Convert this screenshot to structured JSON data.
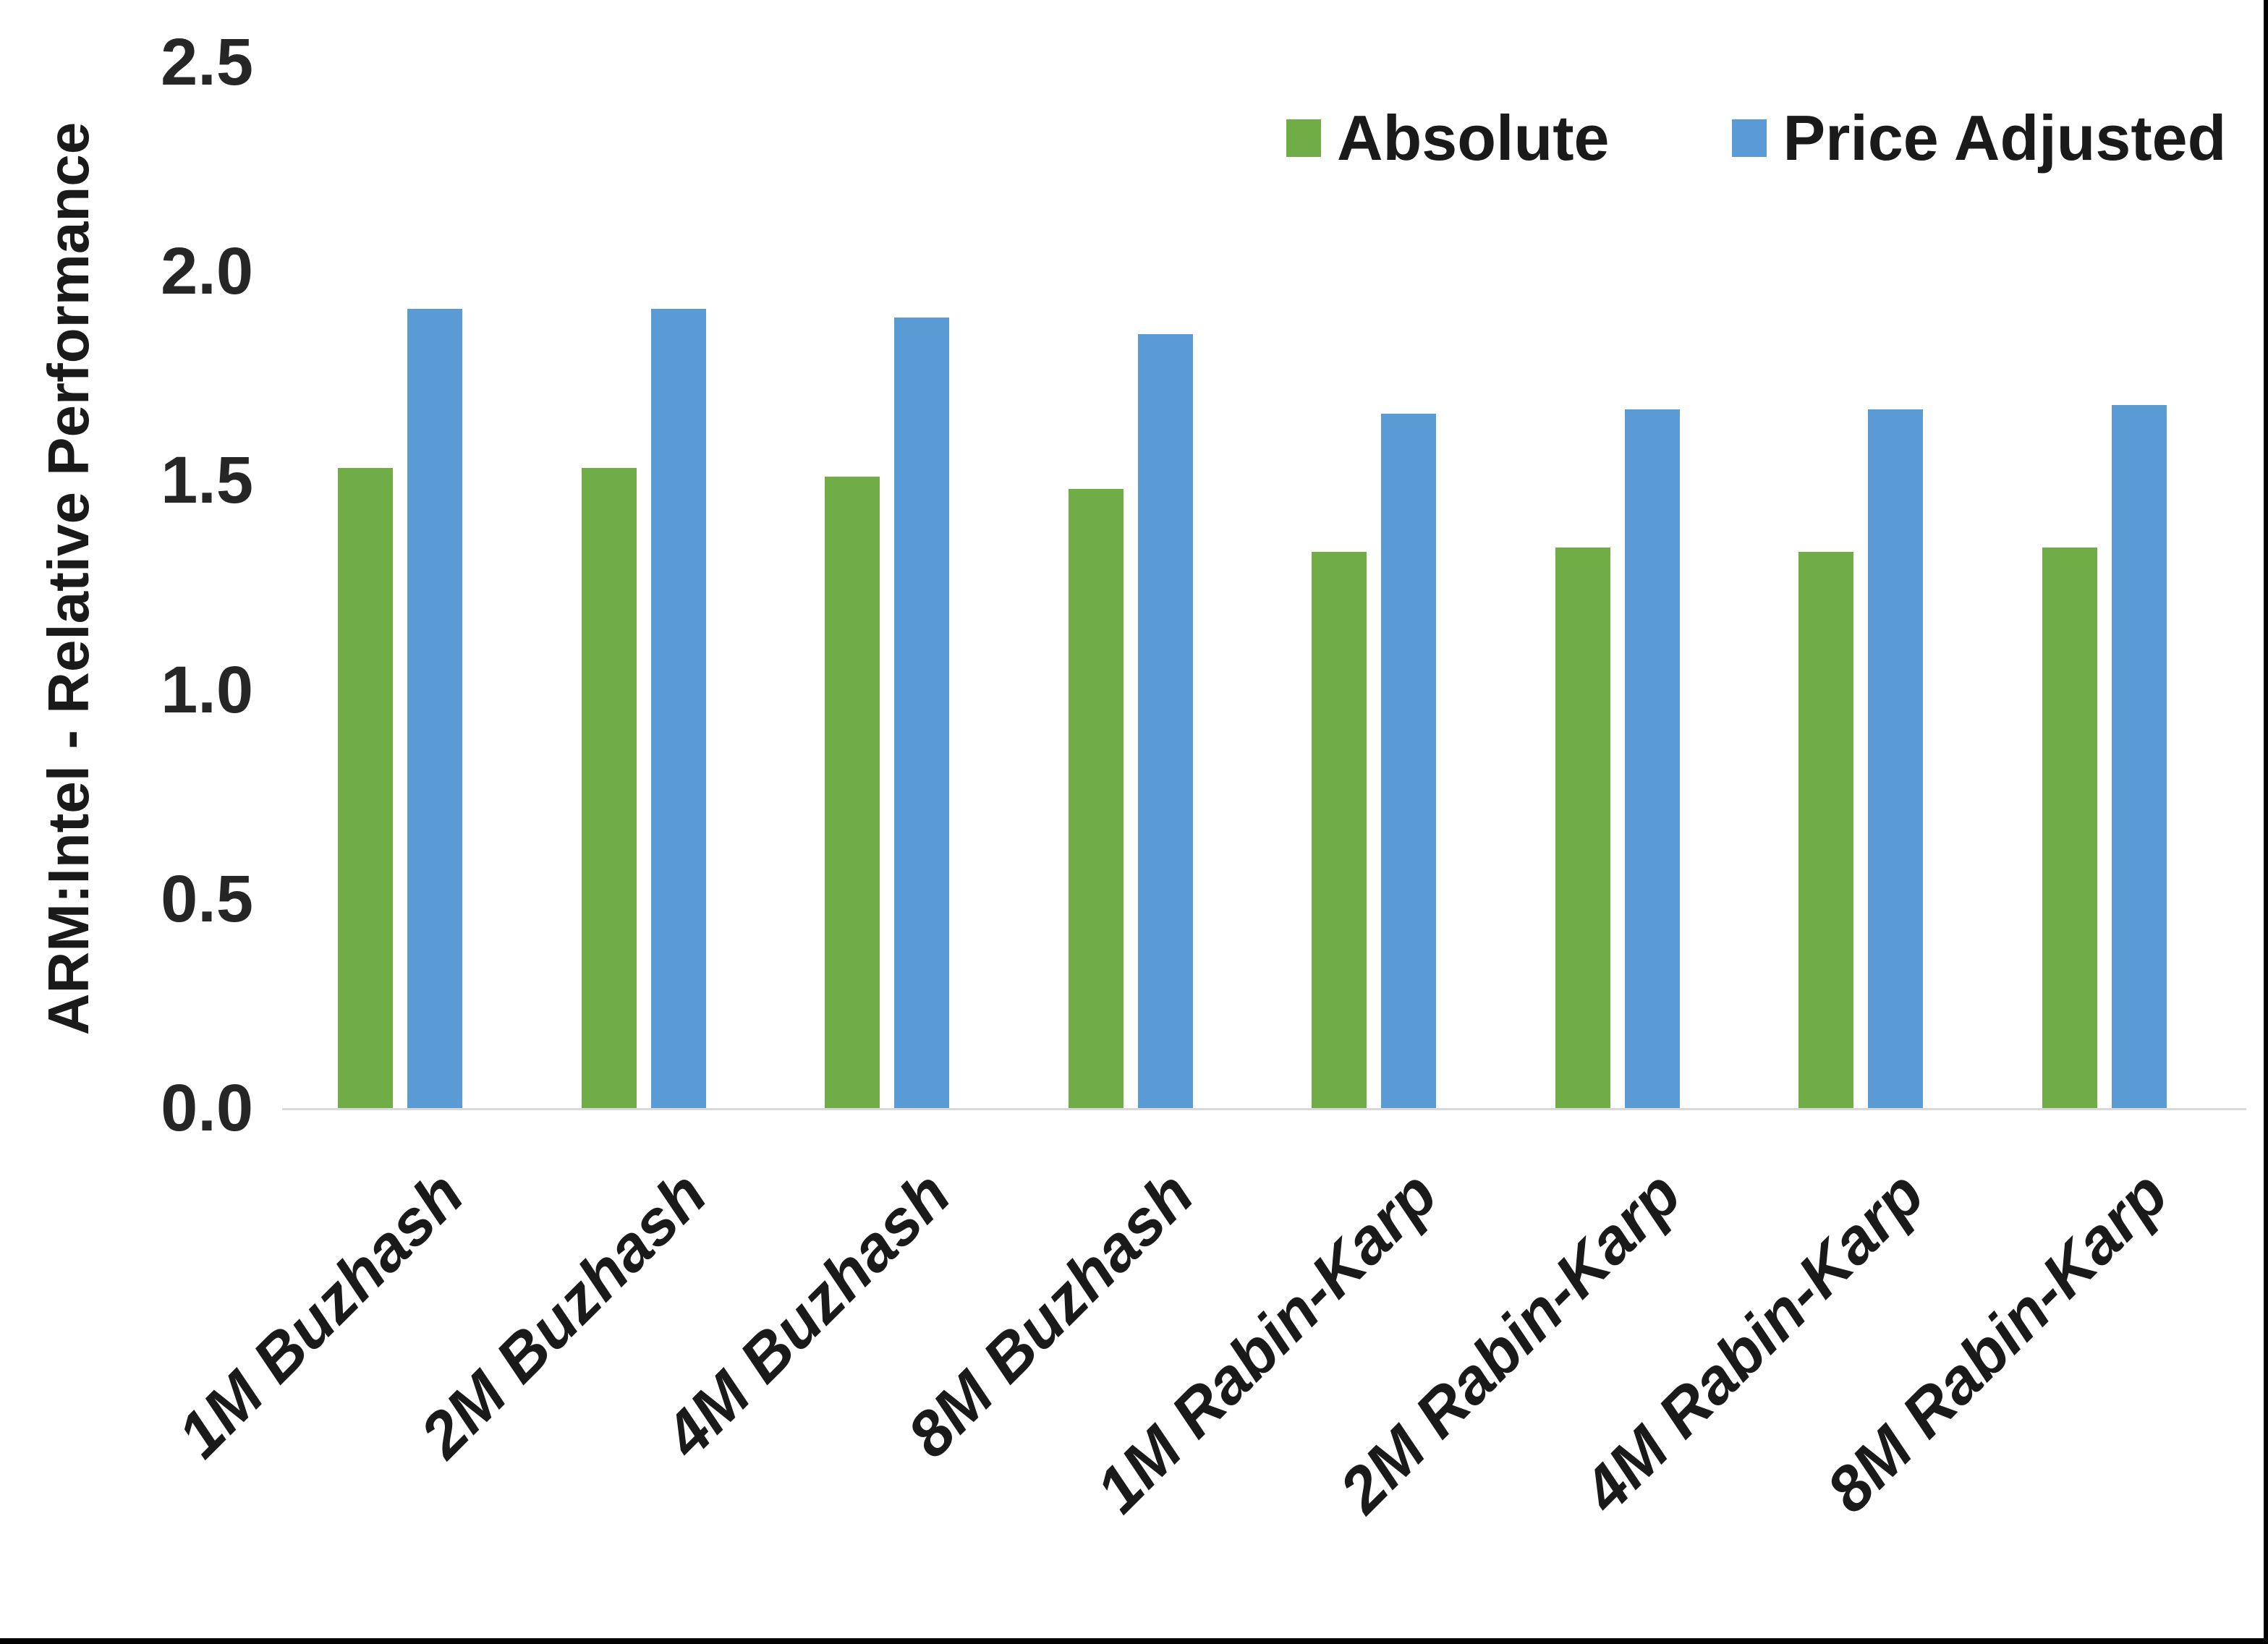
{
  "chart_data": {
    "type": "bar",
    "title": "",
    "xlabel": "",
    "ylabel": "ARM:Intel - Relative Performance",
    "categories": [
      "1M Buzhash",
      "2M Buzhash",
      "4M Buzhash",
      "8M Buzhash",
      "1M Rabin-Karp",
      "2M Rabin-Karp",
      "4M Rabin-Karp",
      "8M Rabin-Karp"
    ],
    "series": [
      {
        "name": "Absolute",
        "color": "#70AD47",
        "values": [
          1.53,
          1.53,
          1.51,
          1.48,
          1.33,
          1.34,
          1.33,
          1.34
        ]
      },
      {
        "name": "Price Adjusted",
        "color": "#5B9BD5",
        "values": [
          1.91,
          1.91,
          1.89,
          1.85,
          1.66,
          1.67,
          1.67,
          1.68
        ]
      }
    ],
    "ylim": [
      0.0,
      2.5
    ],
    "ytick_labels": [
      "0.0",
      "0.5",
      "1.0",
      "1.5",
      "2.0",
      "2.5"
    ],
    "grid": false,
    "legend_position": "top-right"
  },
  "colors": {
    "absolute": "#70AD47",
    "price_adjusted": "#5B9BD5",
    "axis_line": "#D9D9D9",
    "text": "#1a1a1a",
    "page_edge": "#000000"
  }
}
